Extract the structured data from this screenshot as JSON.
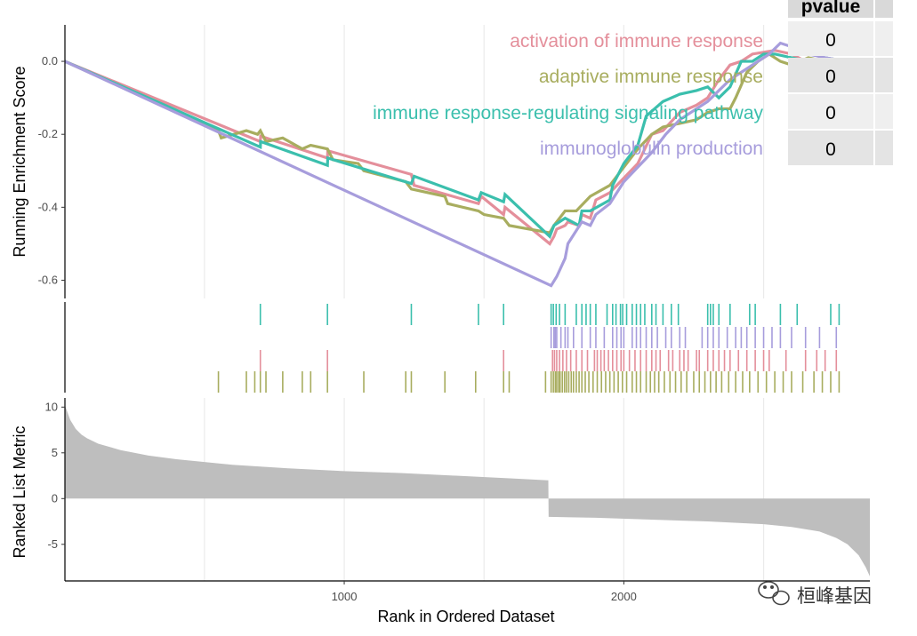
{
  "chart_data": {
    "type": "line",
    "x": {
      "label": "Rank in Ordered Dataset",
      "range": [
        1,
        2880
      ],
      "ticks": [
        1000,
        2000
      ],
      "tick_labels": [
        "1000",
        "2000"
      ]
    },
    "panels": {
      "enrichment": {
        "ylabel": "Running Enrichment Score",
        "ylim": [
          -0.65,
          0.1
        ],
        "yticks": [
          0.0,
          -0.2,
          -0.4,
          -0.6
        ],
        "ytick_labels": [
          "0.0",
          "-0.2",
          "-0.4",
          "-0.6"
        ],
        "grid": true
      },
      "hits": {
        "order_top_to_bottom": [
          "immune response-regulating signaling pathway",
          "immunoglobulin production",
          "activation of immune response",
          "adaptive immune response"
        ]
      },
      "ranked": {
        "ylabel": "Ranked List Metric",
        "ylim": [
          -9,
          11
        ],
        "yticks": [
          10,
          5,
          0,
          -5
        ],
        "ytick_labels": [
          "10",
          "5",
          "0",
          "-5"
        ],
        "values": [
          [
            1,
            10.2
          ],
          [
            20,
            8.6
          ],
          [
            40,
            7.6
          ],
          [
            60,
            7.0
          ],
          [
            80,
            6.6
          ],
          [
            120,
            6.0
          ],
          [
            200,
            5.3
          ],
          [
            300,
            4.7
          ],
          [
            400,
            4.3
          ],
          [
            500,
            4.0
          ],
          [
            600,
            3.7
          ],
          [
            800,
            3.3
          ],
          [
            1000,
            3.0
          ],
          [
            1200,
            2.8
          ],
          [
            1400,
            2.5
          ],
          [
            1600,
            2.2
          ],
          [
            1730,
            2.0
          ],
          [
            1731,
            -2.0
          ],
          [
            1900,
            -2.1
          ],
          [
            2100,
            -2.3
          ],
          [
            2300,
            -2.5
          ],
          [
            2500,
            -2.8
          ],
          [
            2600,
            -3.1
          ],
          [
            2700,
            -3.6
          ],
          [
            2760,
            -4.3
          ],
          [
            2800,
            -5.0
          ],
          [
            2840,
            -6.2
          ],
          [
            2865,
            -7.5
          ],
          [
            2880,
            -8.5
          ]
        ]
      }
    },
    "series": [
      {
        "name": "activation of immune response",
        "color": "#e48f9b",
        "points": [
          [
            1,
            0.0
          ],
          [
            700,
            -0.22
          ],
          [
            701,
            -0.205
          ],
          [
            940,
            -0.265
          ],
          [
            941,
            -0.245
          ],
          [
            1240,
            -0.31
          ],
          [
            1250,
            -0.34
          ],
          [
            1480,
            -0.39
          ],
          [
            1490,
            -0.37
          ],
          [
            1570,
            -0.42
          ],
          [
            1575,
            -0.4
          ],
          [
            1735,
            -0.5
          ],
          [
            1750,
            -0.48
          ],
          [
            1760,
            -0.46
          ],
          [
            1790,
            -0.45
          ],
          [
            1800,
            -0.44
          ],
          [
            1840,
            -0.45
          ],
          [
            1850,
            -0.42
          ],
          [
            1880,
            -0.43
          ],
          [
            1900,
            -0.38
          ],
          [
            1950,
            -0.36
          ],
          [
            2000,
            -0.32
          ],
          [
            2050,
            -0.28
          ],
          [
            2100,
            -0.2
          ],
          [
            2140,
            -0.19
          ],
          [
            2200,
            -0.14
          ],
          [
            2260,
            -0.12
          ],
          [
            2300,
            -0.1
          ],
          [
            2340,
            -0.05
          ],
          [
            2380,
            -0.01
          ],
          [
            2420,
            0.0
          ],
          [
            2460,
            0.02
          ],
          [
            2540,
            0.03
          ],
          [
            2600,
            0.02
          ],
          [
            2650,
            0.0
          ],
          [
            2720,
            0.01
          ],
          [
            2800,
            0.0
          ]
        ]
      },
      {
        "name": "adaptive immune response",
        "color": "#a8ad5f",
        "points": [
          [
            1,
            0.0
          ],
          [
            550,
            -0.19
          ],
          [
            560,
            -0.21
          ],
          [
            650,
            -0.19
          ],
          [
            690,
            -0.2
          ],
          [
            700,
            -0.19
          ],
          [
            720,
            -0.22
          ],
          [
            780,
            -0.21
          ],
          [
            850,
            -0.24
          ],
          [
            880,
            -0.23
          ],
          [
            940,
            -0.24
          ],
          [
            960,
            -0.27
          ],
          [
            1050,
            -0.28
          ],
          [
            1070,
            -0.3
          ],
          [
            1220,
            -0.33
          ],
          [
            1240,
            -0.35
          ],
          [
            1360,
            -0.37
          ],
          [
            1370,
            -0.39
          ],
          [
            1480,
            -0.41
          ],
          [
            1500,
            -0.42
          ],
          [
            1570,
            -0.43
          ],
          [
            1590,
            -0.45
          ],
          [
            1735,
            -0.47
          ],
          [
            1750,
            -0.45
          ],
          [
            1790,
            -0.41
          ],
          [
            1830,
            -0.41
          ],
          [
            1880,
            -0.37
          ],
          [
            1950,
            -0.34
          ],
          [
            2000,
            -0.29
          ],
          [
            2050,
            -0.24
          ],
          [
            2100,
            -0.2
          ],
          [
            2140,
            -0.18
          ],
          [
            2200,
            -0.17
          ],
          [
            2260,
            -0.16
          ],
          [
            2300,
            -0.14
          ],
          [
            2340,
            -0.13
          ],
          [
            2380,
            -0.13
          ],
          [
            2400,
            -0.1
          ],
          [
            2440,
            -0.03
          ],
          [
            2480,
            0.0
          ],
          [
            2520,
            0.02
          ],
          [
            2560,
            0.0
          ],
          [
            2600,
            -0.01
          ],
          [
            2660,
            0.01
          ],
          [
            2720,
            0.0
          ],
          [
            2800,
            0.0
          ]
        ]
      },
      {
        "name": "immune response-regulating signaling pathway",
        "color": "#3bbfad",
        "points": [
          [
            1,
            0.0
          ],
          [
            700,
            -0.235
          ],
          [
            701,
            -0.22
          ],
          [
            940,
            -0.285
          ],
          [
            941,
            -0.265
          ],
          [
            1240,
            -0.335
          ],
          [
            1250,
            -0.315
          ],
          [
            1480,
            -0.38
          ],
          [
            1490,
            -0.36
          ],
          [
            1570,
            -0.385
          ],
          [
            1575,
            -0.365
          ],
          [
            1735,
            -0.48
          ],
          [
            1750,
            -0.45
          ],
          [
            1790,
            -0.43
          ],
          [
            1840,
            -0.45
          ],
          [
            1850,
            -0.41
          ],
          [
            1880,
            -0.41
          ],
          [
            1950,
            -0.38
          ],
          [
            1960,
            -0.34
          ],
          [
            2000,
            -0.28
          ],
          [
            2050,
            -0.23
          ],
          [
            2080,
            -0.15
          ],
          [
            2110,
            -0.13
          ],
          [
            2140,
            -0.11
          ],
          [
            2200,
            -0.09
          ],
          [
            2260,
            -0.08
          ],
          [
            2300,
            -0.07
          ],
          [
            2340,
            -0.1
          ],
          [
            2380,
            -0.07
          ],
          [
            2420,
            0.0
          ],
          [
            2460,
            0.0
          ],
          [
            2500,
            0.02
          ],
          [
            2540,
            0.02
          ],
          [
            2600,
            0.01
          ],
          [
            2660,
            0.0
          ],
          [
            2720,
            0.01
          ],
          [
            2800,
            0.0
          ]
        ]
      },
      {
        "name": "immunoglobulin production",
        "color": "#a79ddc",
        "points": [
          [
            1,
            0.0
          ],
          [
            1740,
            -0.615
          ],
          [
            1760,
            -0.59
          ],
          [
            1790,
            -0.54
          ],
          [
            1800,
            -0.5
          ],
          [
            1850,
            -0.44
          ],
          [
            1880,
            -0.45
          ],
          [
            1900,
            -0.42
          ],
          [
            1950,
            -0.39
          ],
          [
            2000,
            -0.33
          ],
          [
            2050,
            -0.29
          ],
          [
            2100,
            -0.25
          ],
          [
            2150,
            -0.2
          ],
          [
            2200,
            -0.16
          ],
          [
            2260,
            -0.13
          ],
          [
            2300,
            -0.11
          ],
          [
            2340,
            -0.08
          ],
          [
            2380,
            -0.05
          ],
          [
            2420,
            -0.03
          ],
          [
            2460,
            -0.01
          ],
          [
            2520,
            0.02
          ],
          [
            2560,
            0.05
          ],
          [
            2600,
            0.04
          ],
          [
            2660,
            0.02
          ],
          [
            2720,
            0.01
          ],
          [
            2800,
            0.0
          ]
        ]
      }
    ],
    "hits": [
      {
        "name": "immune response-regulating signaling pathway",
        "positions": [
          700,
          940,
          1240,
          1480,
          1570,
          1740,
          1748,
          1758,
          1770,
          1790,
          1830,
          1850,
          1865,
          1880,
          1900,
          1940,
          1960,
          1972,
          1988,
          1996,
          2010,
          2030,
          2045,
          2060,
          2075,
          2100,
          2115,
          2140,
          2170,
          2195,
          2300,
          2310,
          2320,
          2340,
          2380,
          2450,
          2470,
          2560,
          2620,
          2740,
          2770
        ]
      },
      {
        "name": "immunoglobulin production",
        "positions": [
          1740,
          1750,
          1755,
          1760,
          1775,
          1790,
          1800,
          1820,
          1850,
          1880,
          1900,
          1930,
          1960,
          1975,
          1990,
          2000,
          2030,
          2045,
          2060,
          2080,
          2100,
          2120,
          2150,
          2170,
          2200,
          2220,
          2280,
          2300,
          2320,
          2340,
          2370,
          2400,
          2420,
          2440,
          2470,
          2500,
          2530,
          2560,
          2600,
          2650,
          2700,
          2760
        ]
      },
      {
        "name": "activation of immune response",
        "positions": [
          700,
          940,
          1570,
          1745,
          1752,
          1760,
          1770,
          1782,
          1795,
          1810,
          1830,
          1850,
          1870,
          1895,
          1905,
          1918,
          1930,
          1945,
          1960,
          1975,
          1990,
          2000,
          2020,
          2040,
          2060,
          2080,
          2100,
          2115,
          2130,
          2160,
          2175,
          2200,
          2215,
          2230,
          2260,
          2270,
          2300,
          2320,
          2340,
          2360,
          2380,
          2410,
          2440,
          2470,
          2500,
          2520,
          2580,
          2650,
          2690,
          2720,
          2760
        ]
      },
      {
        "name": "adaptive immune response",
        "positions": [
          550,
          650,
          680,
          700,
          720,
          780,
          850,
          880,
          940,
          1070,
          1220,
          1240,
          1360,
          1470,
          1570,
          1590,
          1720,
          1740,
          1748,
          1755,
          1760,
          1767,
          1772,
          1780,
          1788,
          1795,
          1803,
          1812,
          1820,
          1830,
          1840,
          1850,
          1862,
          1875,
          1890,
          1905,
          1920,
          1935,
          1950,
          1965,
          1980,
          1995,
          2010,
          2030,
          2045,
          2060,
          2080,
          2095,
          2110,
          2125,
          2145,
          2165,
          2185,
          2205,
          2225,
          2250,
          2270,
          2290,
          2310,
          2330,
          2350,
          2375,
          2400,
          2425,
          2450,
          2480,
          2510,
          2540,
          2570,
          2600,
          2640,
          2680,
          2710,
          2740,
          2770
        ]
      }
    ],
    "legend": [
      {
        "label": "activation of immune response",
        "color": "#e48f9b"
      },
      {
        "label": "adaptive immune response",
        "color": "#a8ad5f"
      },
      {
        "label": "immune response-regulating signaling pathway",
        "color": "#3bbfad"
      },
      {
        "label": "immunoglobulin production",
        "color": "#a79ddc"
      }
    ],
    "table": {
      "header": "pvalue",
      "rows": [
        "0",
        "0",
        "0",
        "0"
      ]
    }
  },
  "colors": {
    "ranked_fill": "#bebebe",
    "grid": "#ebebeb",
    "axis": "#000000"
  },
  "watermark": {
    "text": "桓峰基因",
    "icon": "wechat-icon"
  }
}
